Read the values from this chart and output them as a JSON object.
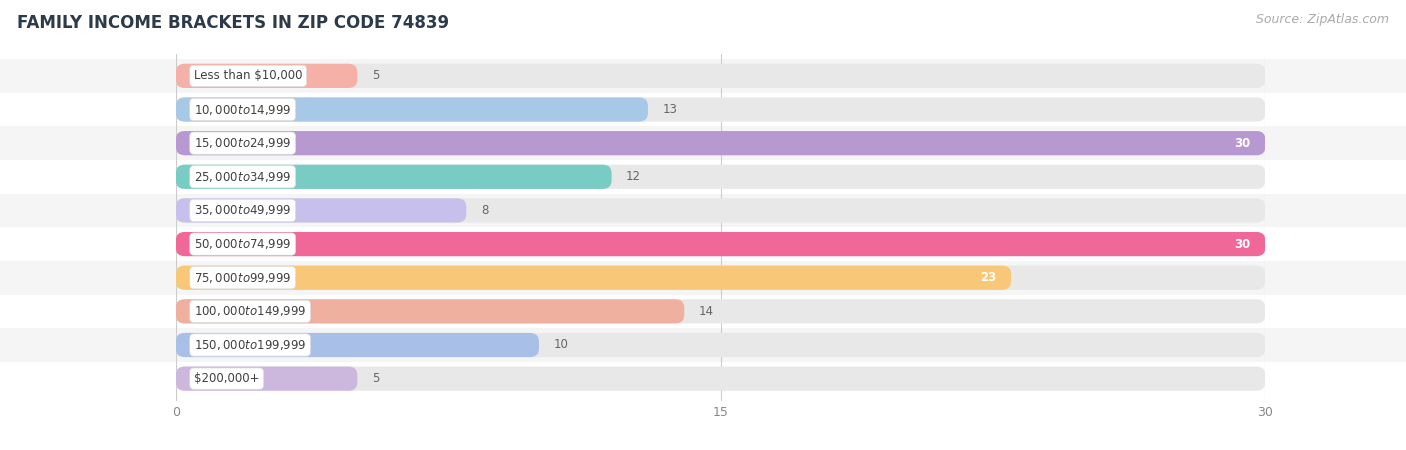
{
  "title": "FAMILY INCOME BRACKETS IN ZIP CODE 74839",
  "source": "Source: ZipAtlas.com",
  "categories": [
    "Less than $10,000",
    "$10,000 to $14,999",
    "$15,000 to $24,999",
    "$25,000 to $34,999",
    "$35,000 to $49,999",
    "$50,000 to $74,999",
    "$75,000 to $99,999",
    "$100,000 to $149,999",
    "$150,000 to $199,999",
    "$200,000+"
  ],
  "values": [
    5,
    13,
    30,
    12,
    8,
    30,
    23,
    14,
    10,
    5
  ],
  "bar_colors": [
    "#f5b0a8",
    "#a8c8e8",
    "#b898d0",
    "#78ccc4",
    "#c8c0ec",
    "#f06898",
    "#f8c878",
    "#f0b0a0",
    "#a8c0e8",
    "#ccb8dc"
  ],
  "xlim": [
    0,
    30
  ],
  "xticks": [
    0,
    15,
    30
  ],
  "background_color": "#ffffff",
  "bar_background_color": "#e8e8e8",
  "row_background_even": "#f5f5f5",
  "row_background_odd": "#ffffff",
  "title_fontsize": 12,
  "source_fontsize": 9,
  "label_fontsize": 8.5,
  "bar_label_fontsize": 8.5
}
